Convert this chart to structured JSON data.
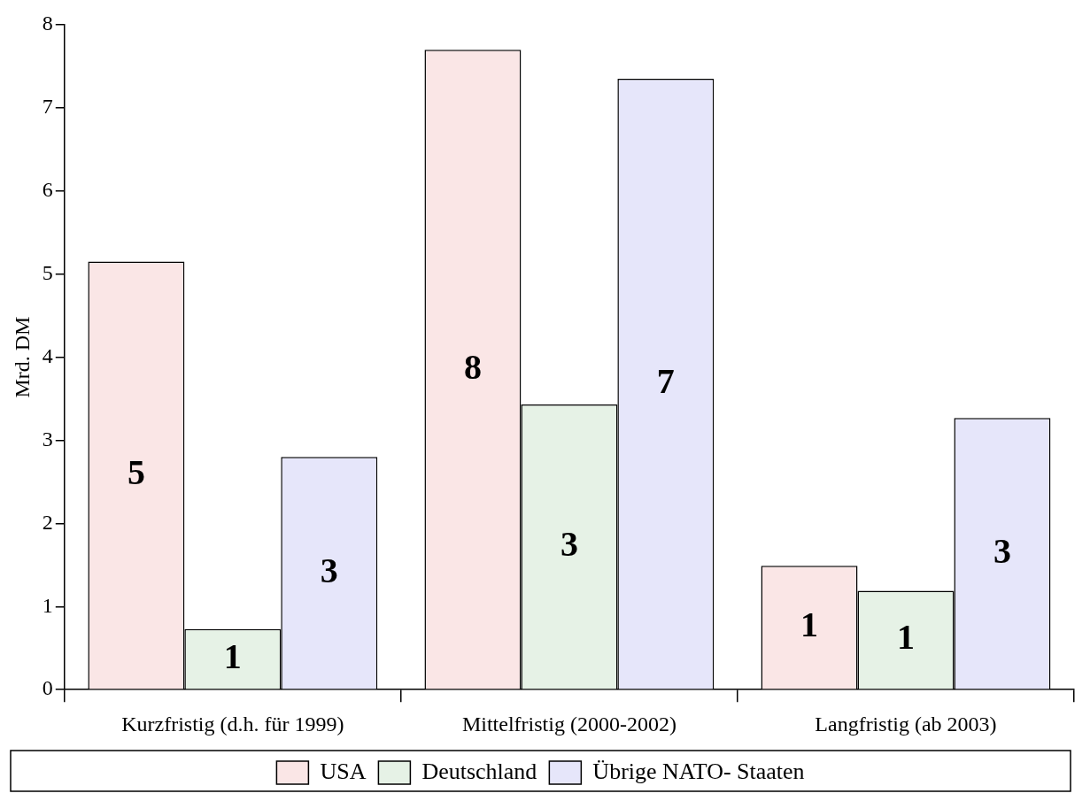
{
  "chart_data": {
    "type": "bar",
    "ylabel": "Mrd. DM",
    "categories": [
      "Kurzfristig (d.h. für 1999)",
      "Mittelfristig (2000-2002)",
      "Langfristig (ab 2003)"
    ],
    "series": [
      {
        "name": "USA",
        "color": "#fae6e6",
        "values": [
          5.15,
          7.7,
          1.49
        ],
        "value_labels": [
          "5",
          "8",
          "1"
        ]
      },
      {
        "name": "Deutschland",
        "color": "#e6f2e6",
        "values": [
          0.73,
          3.43,
          1.19
        ],
        "value_labels": [
          "1",
          "3",
          "1"
        ]
      },
      {
        "name": "Übrige NATO- Staaten",
        "color": "#e6e6fa",
        "values": [
          2.8,
          7.35,
          3.27
        ],
        "value_labels": [
          "3",
          "7",
          "3"
        ]
      }
    ],
    "ylim": [
      0,
      8
    ],
    "yticks": [
      0,
      1,
      2,
      3,
      4,
      5,
      6,
      7,
      8
    ],
    "grid": false,
    "legend": "bottom"
  }
}
